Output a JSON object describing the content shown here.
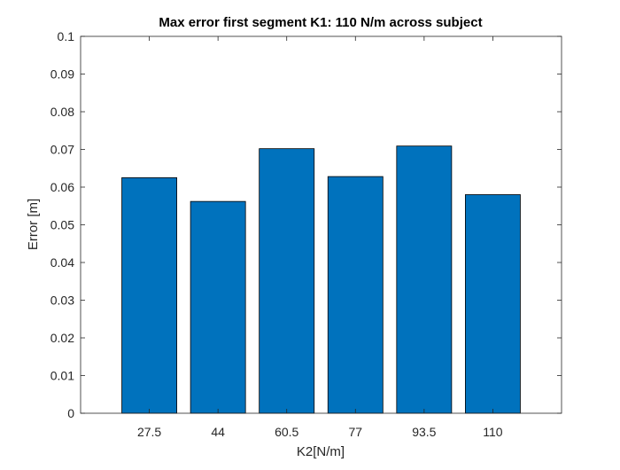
{
  "chart_data": {
    "type": "bar",
    "title": "Max error first segment K1: 110 N/m across subject",
    "xlabel": "K2[N/m]",
    "ylabel": "Error [m]",
    "categories": [
      "27.5",
      "44",
      "60.5",
      "77",
      "93.5",
      "110"
    ],
    "values": [
      0.0625,
      0.0562,
      0.0702,
      0.0628,
      0.0709,
      0.058
    ],
    "ylim": [
      0,
      0.1
    ],
    "yticks": [
      "0",
      "0.01",
      "0.02",
      "0.03",
      "0.04",
      "0.05",
      "0.06",
      "0.07",
      "0.08",
      "0.09",
      "0.1"
    ],
    "xlim": [
      0,
      7
    ],
    "bar_color": "#0072BD",
    "grid": false,
    "legend": "none"
  }
}
